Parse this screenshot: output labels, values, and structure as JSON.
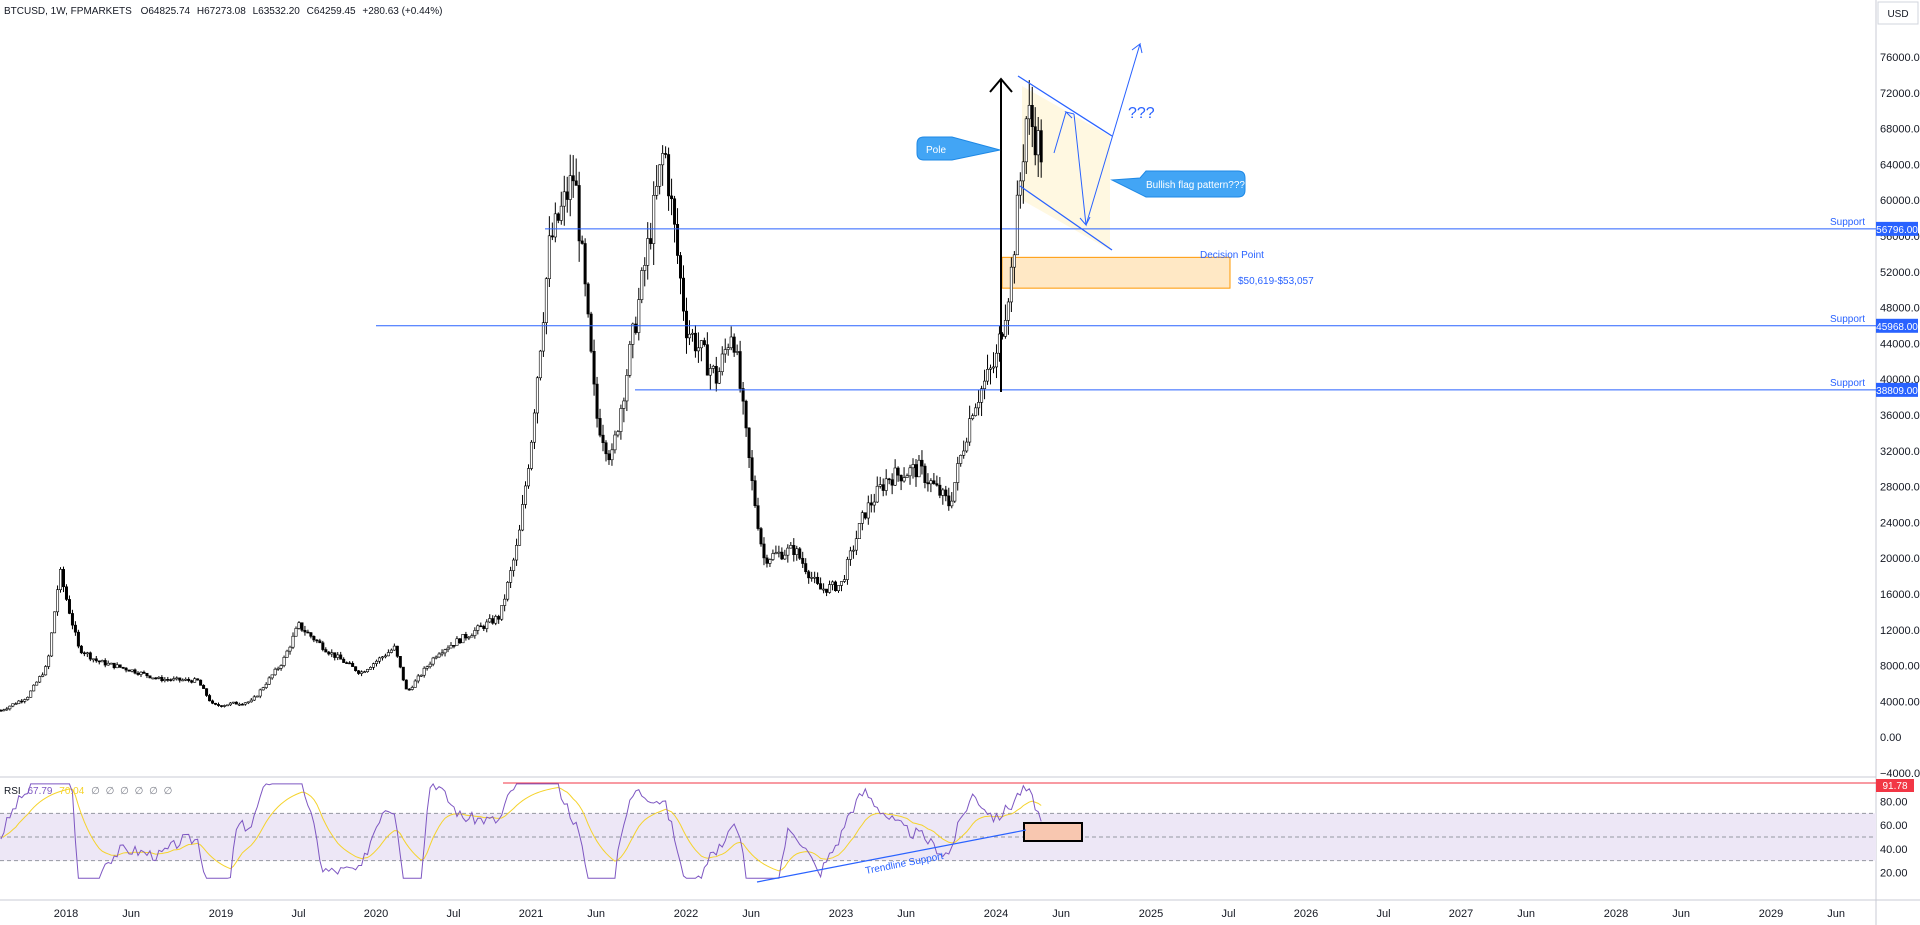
{
  "header": {
    "symbol": "BTCUSD, 1W, FPMARKETS",
    "o_label": "O",
    "o_value": "64825.74",
    "h_label": "H",
    "h_value": "67273.08",
    "l_label": "L",
    "l_value": "63532.20",
    "c_label": "C",
    "c_value": "64259.45",
    "change": "+280.63 (+0.44%)"
  },
  "currency": "USD",
  "colors": {
    "candle": "#000000",
    "line_blue": "#2962ff",
    "rsi_line": "#7e57c2",
    "rsi_ma": "#f5d32c",
    "rsi_band": "#ede7f6",
    "zone_fill": "#ffe0b2",
    "zone_border": "#ff9800",
    "label_fill": "#42a5f5",
    "red_label": "#f23645",
    "flag_fill": "#fff8e1"
  },
  "annotations": {
    "pole_label": "Pole",
    "flag_label": "Bullish flag pattern???",
    "question": "???",
    "decision_point": "Decision Point",
    "zone_range": "$50,619-$53,057",
    "trendline": "Trendline Support",
    "support_label": "Support"
  },
  "price_badges": [
    "56796.00",
    "45968.00",
    "38809.00"
  ],
  "rsi": {
    "label": "RSI",
    "value": "67.79",
    "ma_value": "70.04",
    "zeros": [
      "∅",
      "∅",
      "∅",
      "∅",
      "∅",
      "∅"
    ],
    "badge": "91.78",
    "axis": [
      "80.00",
      "60.00",
      "40.00",
      "20.00"
    ]
  },
  "chart_data": {
    "type": "candlestick",
    "y_axis_labels": [
      "76000.00",
      "72000.00",
      "68000.00",
      "64000.00",
      "60000.00",
      "56000.00",
      "52000.00",
      "48000.00",
      "44000.00",
      "40000.00",
      "36000.00",
      "32000.00",
      "28000.00",
      "24000.00",
      "20000.00",
      "16000.00",
      "12000.00",
      "8000.00",
      "4000.00",
      "0.00",
      "−4000.00"
    ],
    "ylim": [
      -4000,
      80000
    ],
    "x_tick_labels": [
      "2018",
      "Jun",
      "2019",
      "Jul",
      "2020",
      "Jul",
      "2021",
      "Jun",
      "2022",
      "Jun",
      "2023",
      "Jun",
      "2024",
      "Jun",
      "2025",
      "Jul",
      "2026",
      "Jul",
      "2027",
      "Jun",
      "2028",
      "Jun",
      "2029",
      "Jun"
    ],
    "x_tick_dates": [
      2018.0,
      2018.42,
      2019.0,
      2019.5,
      2020.0,
      2020.5,
      2021.0,
      2021.42,
      2022.0,
      2022.42,
      2023.0,
      2023.42,
      2024.0,
      2024.42,
      2025.0,
      2025.5,
      2026.0,
      2026.5,
      2027.0,
      2027.42,
      2028.0,
      2028.42,
      2029.0,
      2029.42
    ],
    "support_levels": [
      56796,
      45968,
      38809
    ],
    "decision_zone": [
      50619,
      53057
    ],
    "price_path": [
      {
        "t": 2017.58,
        "p": 3000
      },
      {
        "t": 2017.75,
        "p": 4500
      },
      {
        "t": 2017.88,
        "p": 8000
      },
      {
        "t": 2017.96,
        "p": 18500
      },
      {
        "t": 2018.08,
        "p": 10000
      },
      {
        "t": 2018.2,
        "p": 8500
      },
      {
        "t": 2018.42,
        "p": 7500
      },
      {
        "t": 2018.6,
        "p": 6500
      },
      {
        "t": 2018.85,
        "p": 6300
      },
      {
        "t": 2018.95,
        "p": 3500
      },
      {
        "t": 2019.2,
        "p": 4000
      },
      {
        "t": 2019.4,
        "p": 8500
      },
      {
        "t": 2019.5,
        "p": 12500
      },
      {
        "t": 2019.7,
        "p": 9500
      },
      {
        "t": 2019.9,
        "p": 7200
      },
      {
        "t": 2020.12,
        "p": 10000
      },
      {
        "t": 2020.2,
        "p": 5000
      },
      {
        "t": 2020.4,
        "p": 9500
      },
      {
        "t": 2020.6,
        "p": 11500
      },
      {
        "t": 2020.8,
        "p": 13500
      },
      {
        "t": 2020.92,
        "p": 22000
      },
      {
        "t": 2021.0,
        "p": 33000
      },
      {
        "t": 2021.12,
        "p": 55000
      },
      {
        "t": 2021.28,
        "p": 63000
      },
      {
        "t": 2021.42,
        "p": 36000
      },
      {
        "t": 2021.52,
        "p": 31000
      },
      {
        "t": 2021.68,
        "p": 47000
      },
      {
        "t": 2021.86,
        "p": 66000
      },
      {
        "t": 2022.0,
        "p": 46000
      },
      {
        "t": 2022.2,
        "p": 40000
      },
      {
        "t": 2022.3,
        "p": 46000
      },
      {
        "t": 2022.42,
        "p": 29000
      },
      {
        "t": 2022.5,
        "p": 20000
      },
      {
        "t": 2022.7,
        "p": 21000
      },
      {
        "t": 2022.86,
        "p": 16500
      },
      {
        "t": 2023.0,
        "p": 17000
      },
      {
        "t": 2023.15,
        "p": 25000
      },
      {
        "t": 2023.3,
        "p": 29000
      },
      {
        "t": 2023.5,
        "p": 30000
      },
      {
        "t": 2023.7,
        "p": 26000
      },
      {
        "t": 2023.85,
        "p": 37000
      },
      {
        "t": 2024.0,
        "p": 42000
      },
      {
        "t": 2024.1,
        "p": 52000
      },
      {
        "t": 2024.2,
        "p": 70000
      },
      {
        "t": 2024.3,
        "p": 65000
      }
    ]
  }
}
